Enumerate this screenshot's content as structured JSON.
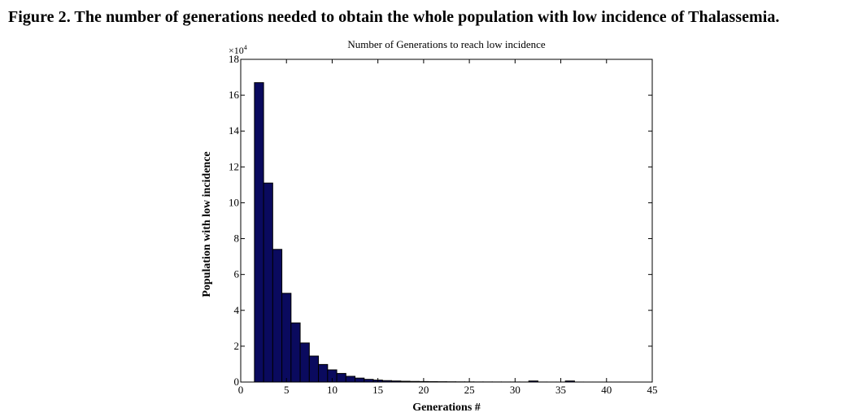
{
  "figure": {
    "caption": "Figure 2. The number of generations needed to obtain the whole population with low incidence of Thalassemia."
  },
  "colors": {
    "bar_fill": "#0a0a5e",
    "bar_edge": "#000000",
    "axis": "#000000"
  },
  "chart_data": {
    "type": "bar",
    "title": "Number of Generations to reach low incidence",
    "xlabel": "Generations #",
    "ylabel": "Population with low incidence",
    "y_multiplier": "×10",
    "y_multiplier_exponent": "4",
    "xlim": [
      0,
      45
    ],
    "ylim": [
      0,
      18
    ],
    "x_ticks": [
      0,
      5,
      10,
      15,
      20,
      25,
      30,
      35,
      40,
      45
    ],
    "y_ticks": [
      0,
      2,
      4,
      6,
      8,
      10,
      12,
      14,
      16,
      18
    ],
    "grid": false,
    "bin_width": 1,
    "x": [
      2,
      3,
      4,
      5,
      6,
      7,
      8,
      9,
      10,
      11,
      12,
      13,
      14,
      15,
      16,
      17,
      18,
      19,
      20,
      21,
      22,
      23,
      24,
      25,
      26,
      27,
      28,
      29,
      30,
      31,
      32,
      33,
      34,
      35,
      36,
      37,
      38,
      39,
      40,
      41,
      42
    ],
    "values": [
      16.7,
      11.1,
      7.4,
      4.95,
      3.3,
      2.18,
      1.45,
      0.98,
      0.68,
      0.48,
      0.32,
      0.22,
      0.15,
      0.11,
      0.08,
      0.06,
      0.045,
      0.035,
      0.028,
      0.022,
      0.018,
      0.014,
      0.011,
      0.009,
      0.007,
      0.006,
      0.005,
      0.004,
      0.004,
      0.003,
      0.06,
      0.003,
      0.002,
      0.002,
      0.06,
      0.002,
      0.001,
      0.001,
      0.001,
      0.001,
      0.001
    ]
  }
}
